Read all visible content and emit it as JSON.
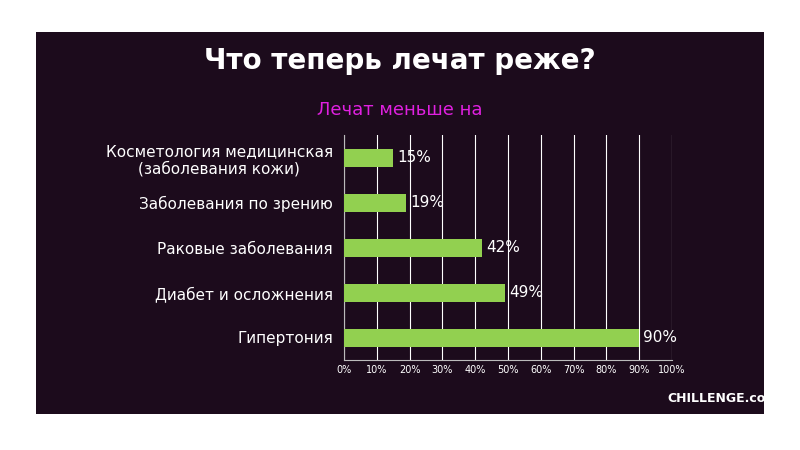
{
  "chart_data": {
    "type": "bar",
    "orientation": "horizontal",
    "title": "Что теперь лечат реже?",
    "subtitle": "Лечат меньше на",
    "categories": [
      "Косметология медицинская\n(заболевания кожи)",
      "Заболевания по зрению",
      "Раковые заболевания",
      "Диабет и осложнения",
      "Гипертония"
    ],
    "values": [
      15,
      19,
      42,
      49,
      90
    ],
    "value_labels": [
      "15%",
      "19%",
      "42%",
      "49%",
      "90%"
    ],
    "data_labels": true,
    "color": "#92d050",
    "xlim": [
      0,
      100
    ],
    "xticks": [
      {
        "value": 0,
        "label": "0%"
      },
      {
        "value": 10,
        "label": "10%"
      },
      {
        "value": 20,
        "label": "20%"
      },
      {
        "value": 30,
        "label": "30%"
      },
      {
        "value": 40,
        "label": "40%"
      },
      {
        "value": 50,
        "label": "50%"
      },
      {
        "value": 60,
        "label": "60%"
      },
      {
        "value": 70,
        "label": "70%"
      },
      {
        "value": 80,
        "label": "80%"
      },
      {
        "value": 90,
        "label": "90%"
      },
      {
        "value": 100,
        "label": "100%"
      }
    ],
    "grid": true,
    "annotations": [
      "CHILLENGE.conf"
    ]
  }
}
